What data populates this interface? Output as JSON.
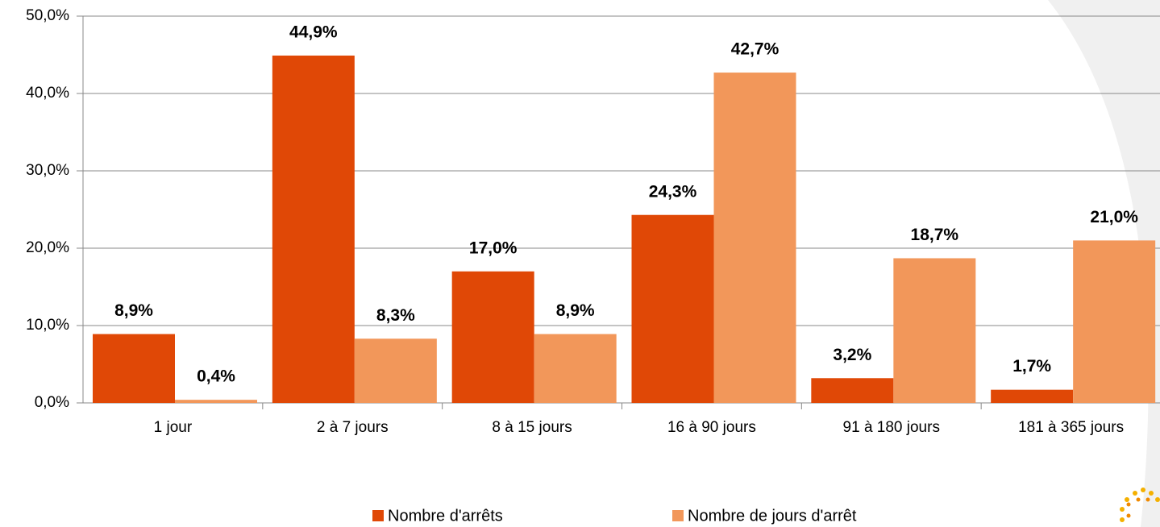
{
  "chart_data": {
    "type": "bar",
    "categories": [
      "1 jour",
      "2 à 7 jours",
      "8 à 15 jours",
      "16 à 90 jours",
      "91 à 180 jours",
      "181 à 365 jours"
    ],
    "series": [
      {
        "name": "Nombre d'arrêts",
        "color": "#e04806",
        "values": [
          8.9,
          44.9,
          17.0,
          24.3,
          3.2,
          1.7
        ],
        "value_labels": [
          "8,9%",
          "44,9%",
          "17,0%",
          "24,3%",
          "3,2%",
          "1,7%"
        ]
      },
      {
        "name": "Nombre de jours d'arrêt",
        "color": "#f2975a",
        "values": [
          0.4,
          8.3,
          8.9,
          42.7,
          18.7,
          21.0
        ],
        "value_labels": [
          "0,4%",
          "8,3%",
          "8,9%",
          "42,7%",
          "18,7%",
          "21,0%"
        ]
      }
    ],
    "ylim": [
      0,
      50
    ],
    "yticks": [
      {
        "value": 0,
        "label": "0,0%"
      },
      {
        "value": 10,
        "label": "10,0%"
      },
      {
        "value": 20,
        "label": "20,0%"
      },
      {
        "value": 30,
        "label": "30,0%"
      },
      {
        "value": 40,
        "label": "40,0%"
      },
      {
        "value": 50,
        "label": "50,0%"
      }
    ],
    "grid": true,
    "legend": "bottom"
  },
  "logo": "sofaxis"
}
